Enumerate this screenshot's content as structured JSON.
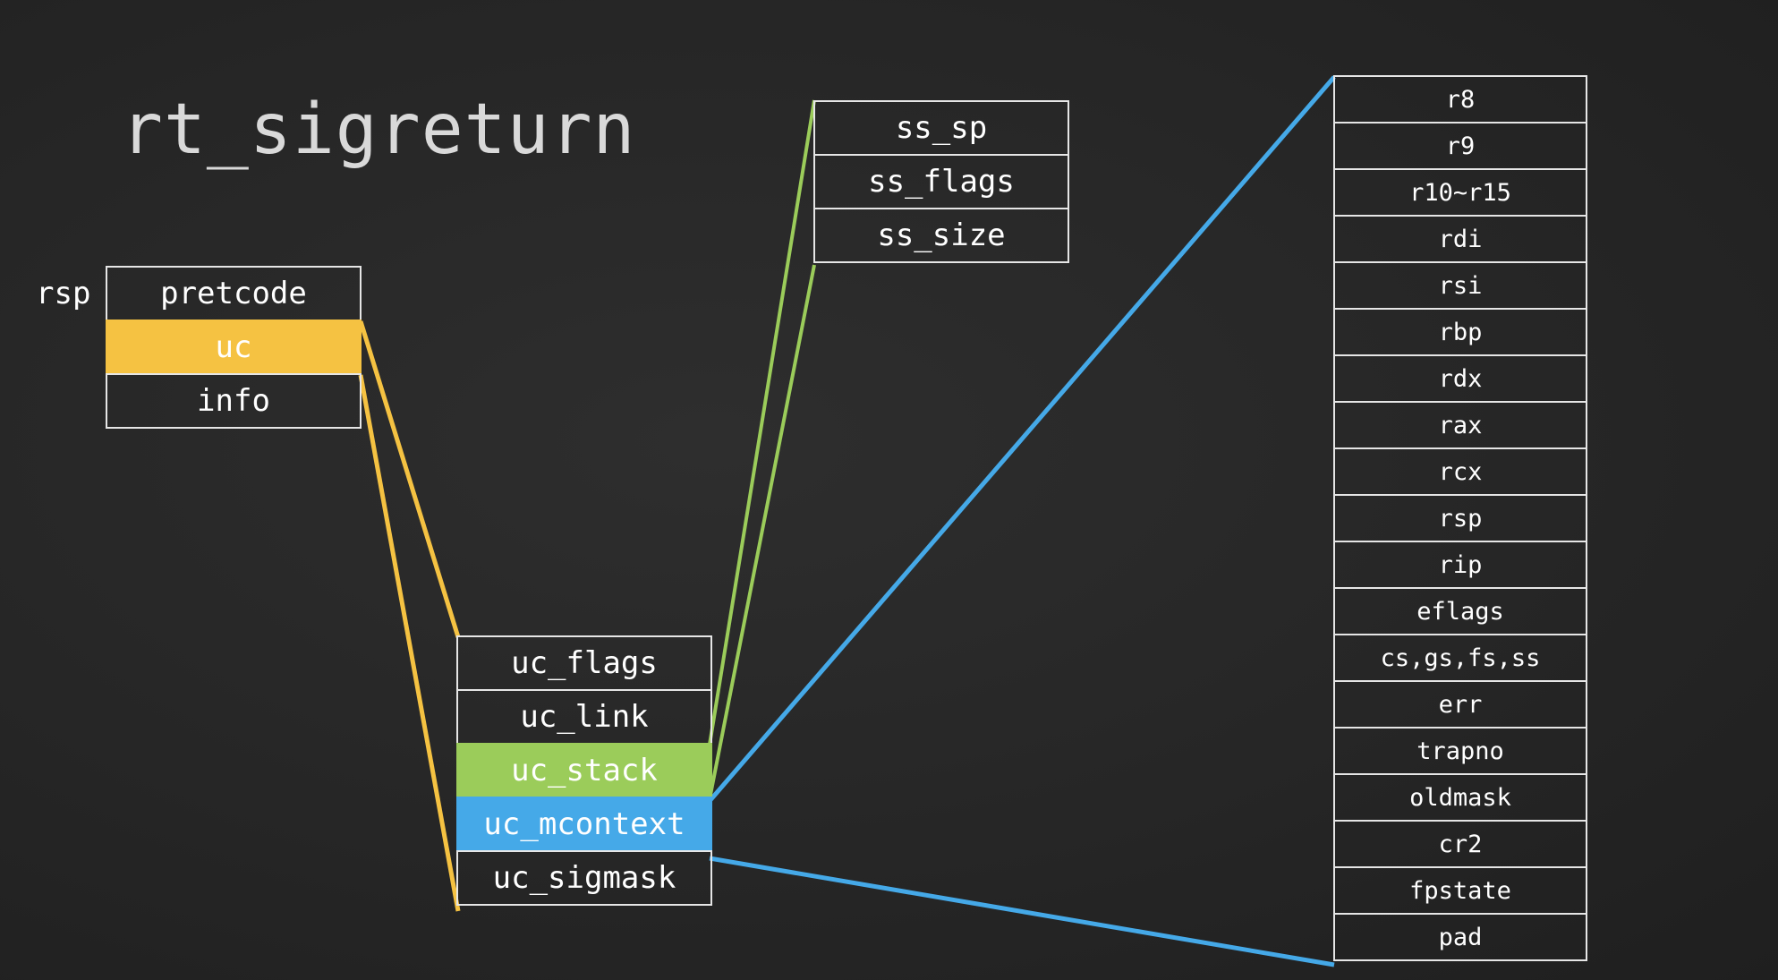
{
  "title": "rt_sigreturn",
  "stack_pointer_label": "rsp",
  "frame": {
    "fields": [
      "pretcode",
      "uc",
      "info"
    ],
    "highlight_index": 1
  },
  "ucontext": {
    "fields": [
      "uc_flags",
      "uc_link",
      "uc_stack",
      "uc_mcontext",
      "uc_sigmask"
    ],
    "stack_index": 2,
    "mcontext_index": 3
  },
  "sigstack": {
    "fields": [
      "ss_sp",
      "ss_flags",
      "ss_size"
    ]
  },
  "sigcontext": {
    "fields": [
      "r8",
      "r9",
      "r10~r15",
      "rdi",
      "rsi",
      "rbp",
      "rdx",
      "rax",
      "rcx",
      "rsp",
      "rip",
      "eflags",
      "cs,gs,fs,ss",
      "err",
      "trapno",
      "oldmask",
      "cr2",
      "fpstate",
      "pad"
    ]
  },
  "colors": {
    "uc": "#f5c242",
    "uc_stack": "#9bcc5a",
    "uc_mcontext": "#45a9e8"
  }
}
